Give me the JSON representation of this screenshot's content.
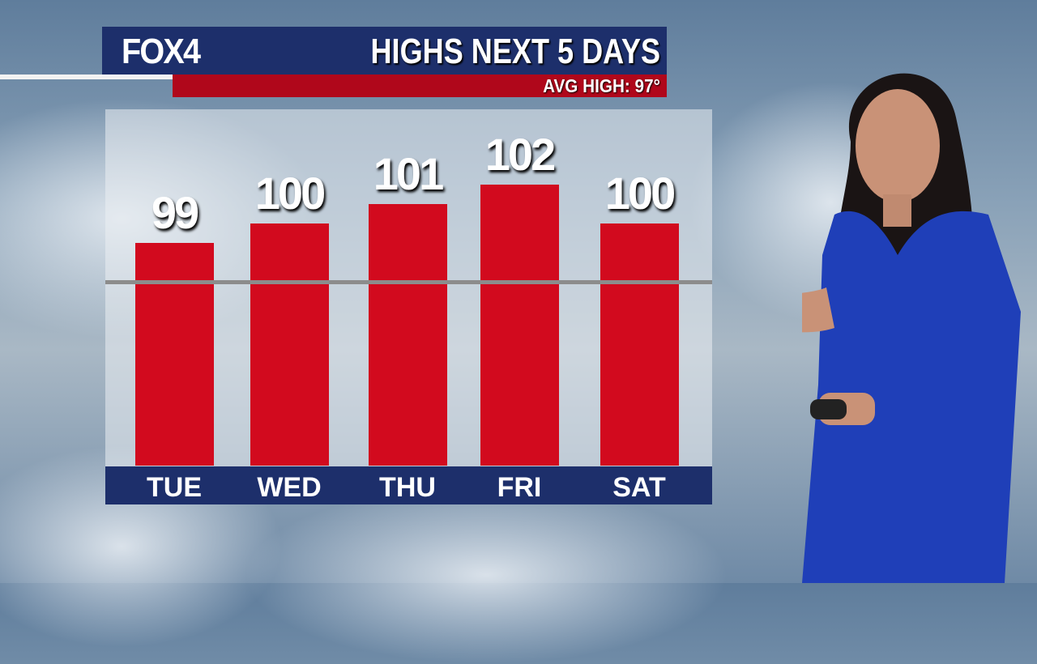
{
  "header": {
    "logo": "FOX4",
    "title": "HIGHS NEXT 5 DAYS",
    "subtitle": "AVG HIGH: 97°"
  },
  "colors": {
    "bar": "#d20a1e",
    "header": "#1d2f6b",
    "subheader": "#b0071b",
    "avg_line": "#8c8c8c"
  },
  "chart_data": {
    "type": "bar",
    "title": "HIGHS NEXT 5 DAYS",
    "categories": [
      "TUE",
      "WED",
      "THU",
      "FRI",
      "SAT"
    ],
    "values": [
      99,
      100,
      101,
      102,
      100
    ],
    "reference_line": {
      "label": "AVG HIGH: 97°",
      "value": 97
    },
    "grid": false
  }
}
